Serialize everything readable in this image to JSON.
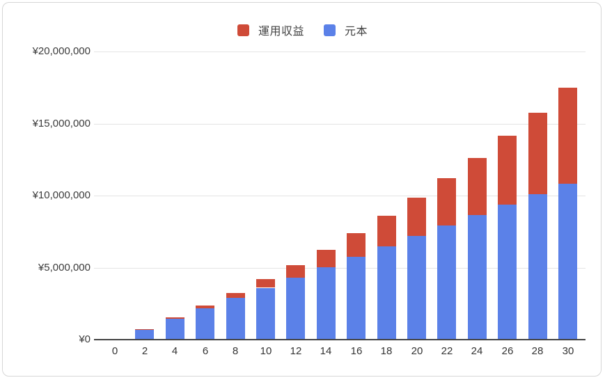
{
  "chart": {
    "legend": {
      "items": [
        {
          "label": "運用収益",
          "color": "#CF4B38"
        },
        {
          "label": "元本",
          "color": "#5B81E8"
        }
      ]
    }
  },
  "chart_data": {
    "type": "bar",
    "stacked": true,
    "title": "",
    "xlabel": "",
    "ylabel": "",
    "categories": [
      "0",
      "2",
      "4",
      "6",
      "8",
      "10",
      "12",
      "14",
      "16",
      "18",
      "20",
      "22",
      "24",
      "26",
      "28",
      "30"
    ],
    "series": [
      {
        "name": "元本",
        "color": "#5B81E8",
        "values": [
          0,
          720000,
          1440000,
          2160000,
          2880000,
          3600000,
          4320000,
          5040000,
          5760000,
          6480000,
          7200000,
          7920000,
          8640000,
          9360000,
          10080000,
          10800000
        ]
      },
      {
        "name": "運用収益",
        "color": "#CF4B38",
        "values": [
          0,
          21000,
          88000,
          203000,
          371000,
          592000,
          872000,
          1214000,
          1622000,
          2099000,
          2650000,
          3279000,
          3992000,
          4793000,
          5688000,
          6683000
        ]
      }
    ],
    "stack_totals": [
      0,
      741000,
      1528000,
      2363000,
      3251000,
      4192000,
      5192000,
      6254000,
      7382000,
      8579000,
      9850000,
      11199000,
      12632000,
      14153000,
      15768000,
      17483000
    ],
    "ylim": [
      0,
      20000000
    ],
    "y_tick_interval": 5000000,
    "y_tick_labels": [
      "¥0",
      "¥5,000,000",
      "¥10,000,000",
      "¥15,000,000",
      "¥20,000,000"
    ],
    "grid": true,
    "legend_position": "top",
    "currency_prefix": "¥"
  },
  "colors": {
    "background": "#FFFFFF",
    "card_border": "#D6D6D6",
    "gridline": "#E4E4E4",
    "axis_line": "#424242",
    "axis_text": "#3B3B3B",
    "legend_text": "#424242"
  }
}
